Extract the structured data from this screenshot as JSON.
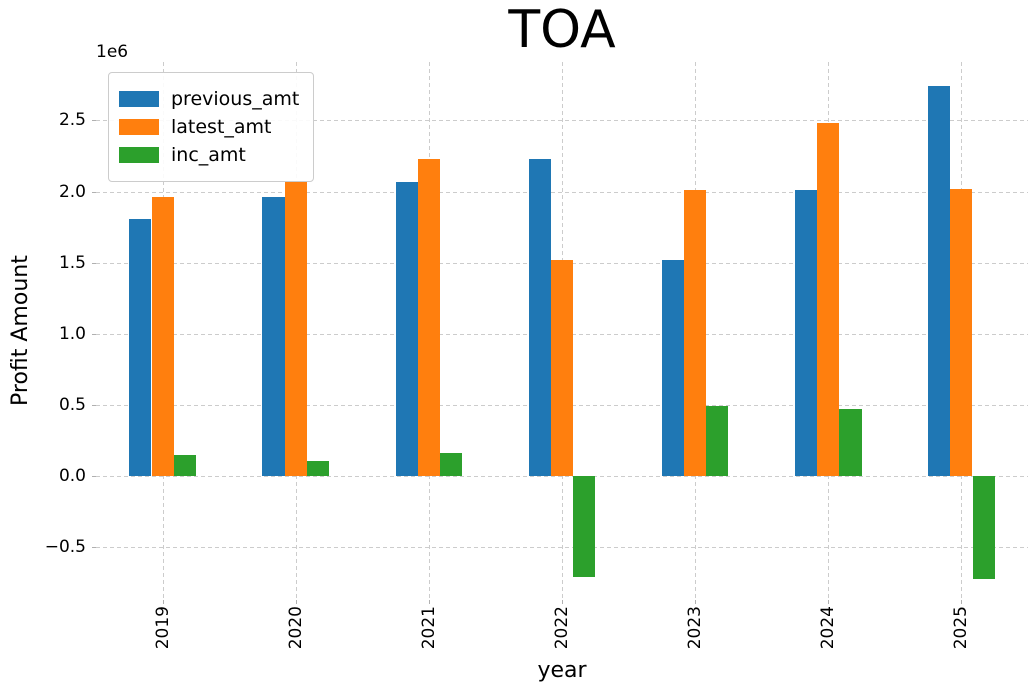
{
  "chart_data": {
    "type": "bar",
    "title": "TOA",
    "xlabel": "year",
    "ylabel": "Profit Amount",
    "offset_text": "1e6",
    "grid": true,
    "legend_position": "upper left",
    "categories": [
      "2019",
      "2020",
      "2021",
      "2022",
      "2023",
      "2024",
      "2025"
    ],
    "series": [
      {
        "name": "previous_amt",
        "color": "#1f77b4",
        "values": [
          1810000,
          1960000,
          2070000,
          2230000,
          1520000,
          2010000,
          2740000
        ]
      },
      {
        "name": "latest_amt",
        "color": "#ff7f0e",
        "values": [
          1960000,
          2070000,
          2230000,
          1520000,
          2010000,
          2480000,
          2020000
        ]
      },
      {
        "name": "inc_amt",
        "color": "#2ca02c",
        "values": [
          150000,
          110000,
          160000,
          -710000,
          490000,
          470000,
          -720000
        ]
      }
    ],
    "ylim": [
      -870000,
      2910000
    ],
    "yticks": [
      -500000,
      0,
      500000,
      1000000,
      1500000,
      2000000,
      2500000
    ],
    "ytick_labels": [
      "−0.5",
      "0.0",
      "0.5",
      "1.0",
      "1.5",
      "2.0",
      "2.5"
    ],
    "bar_group_width_fraction": 0.5
  }
}
